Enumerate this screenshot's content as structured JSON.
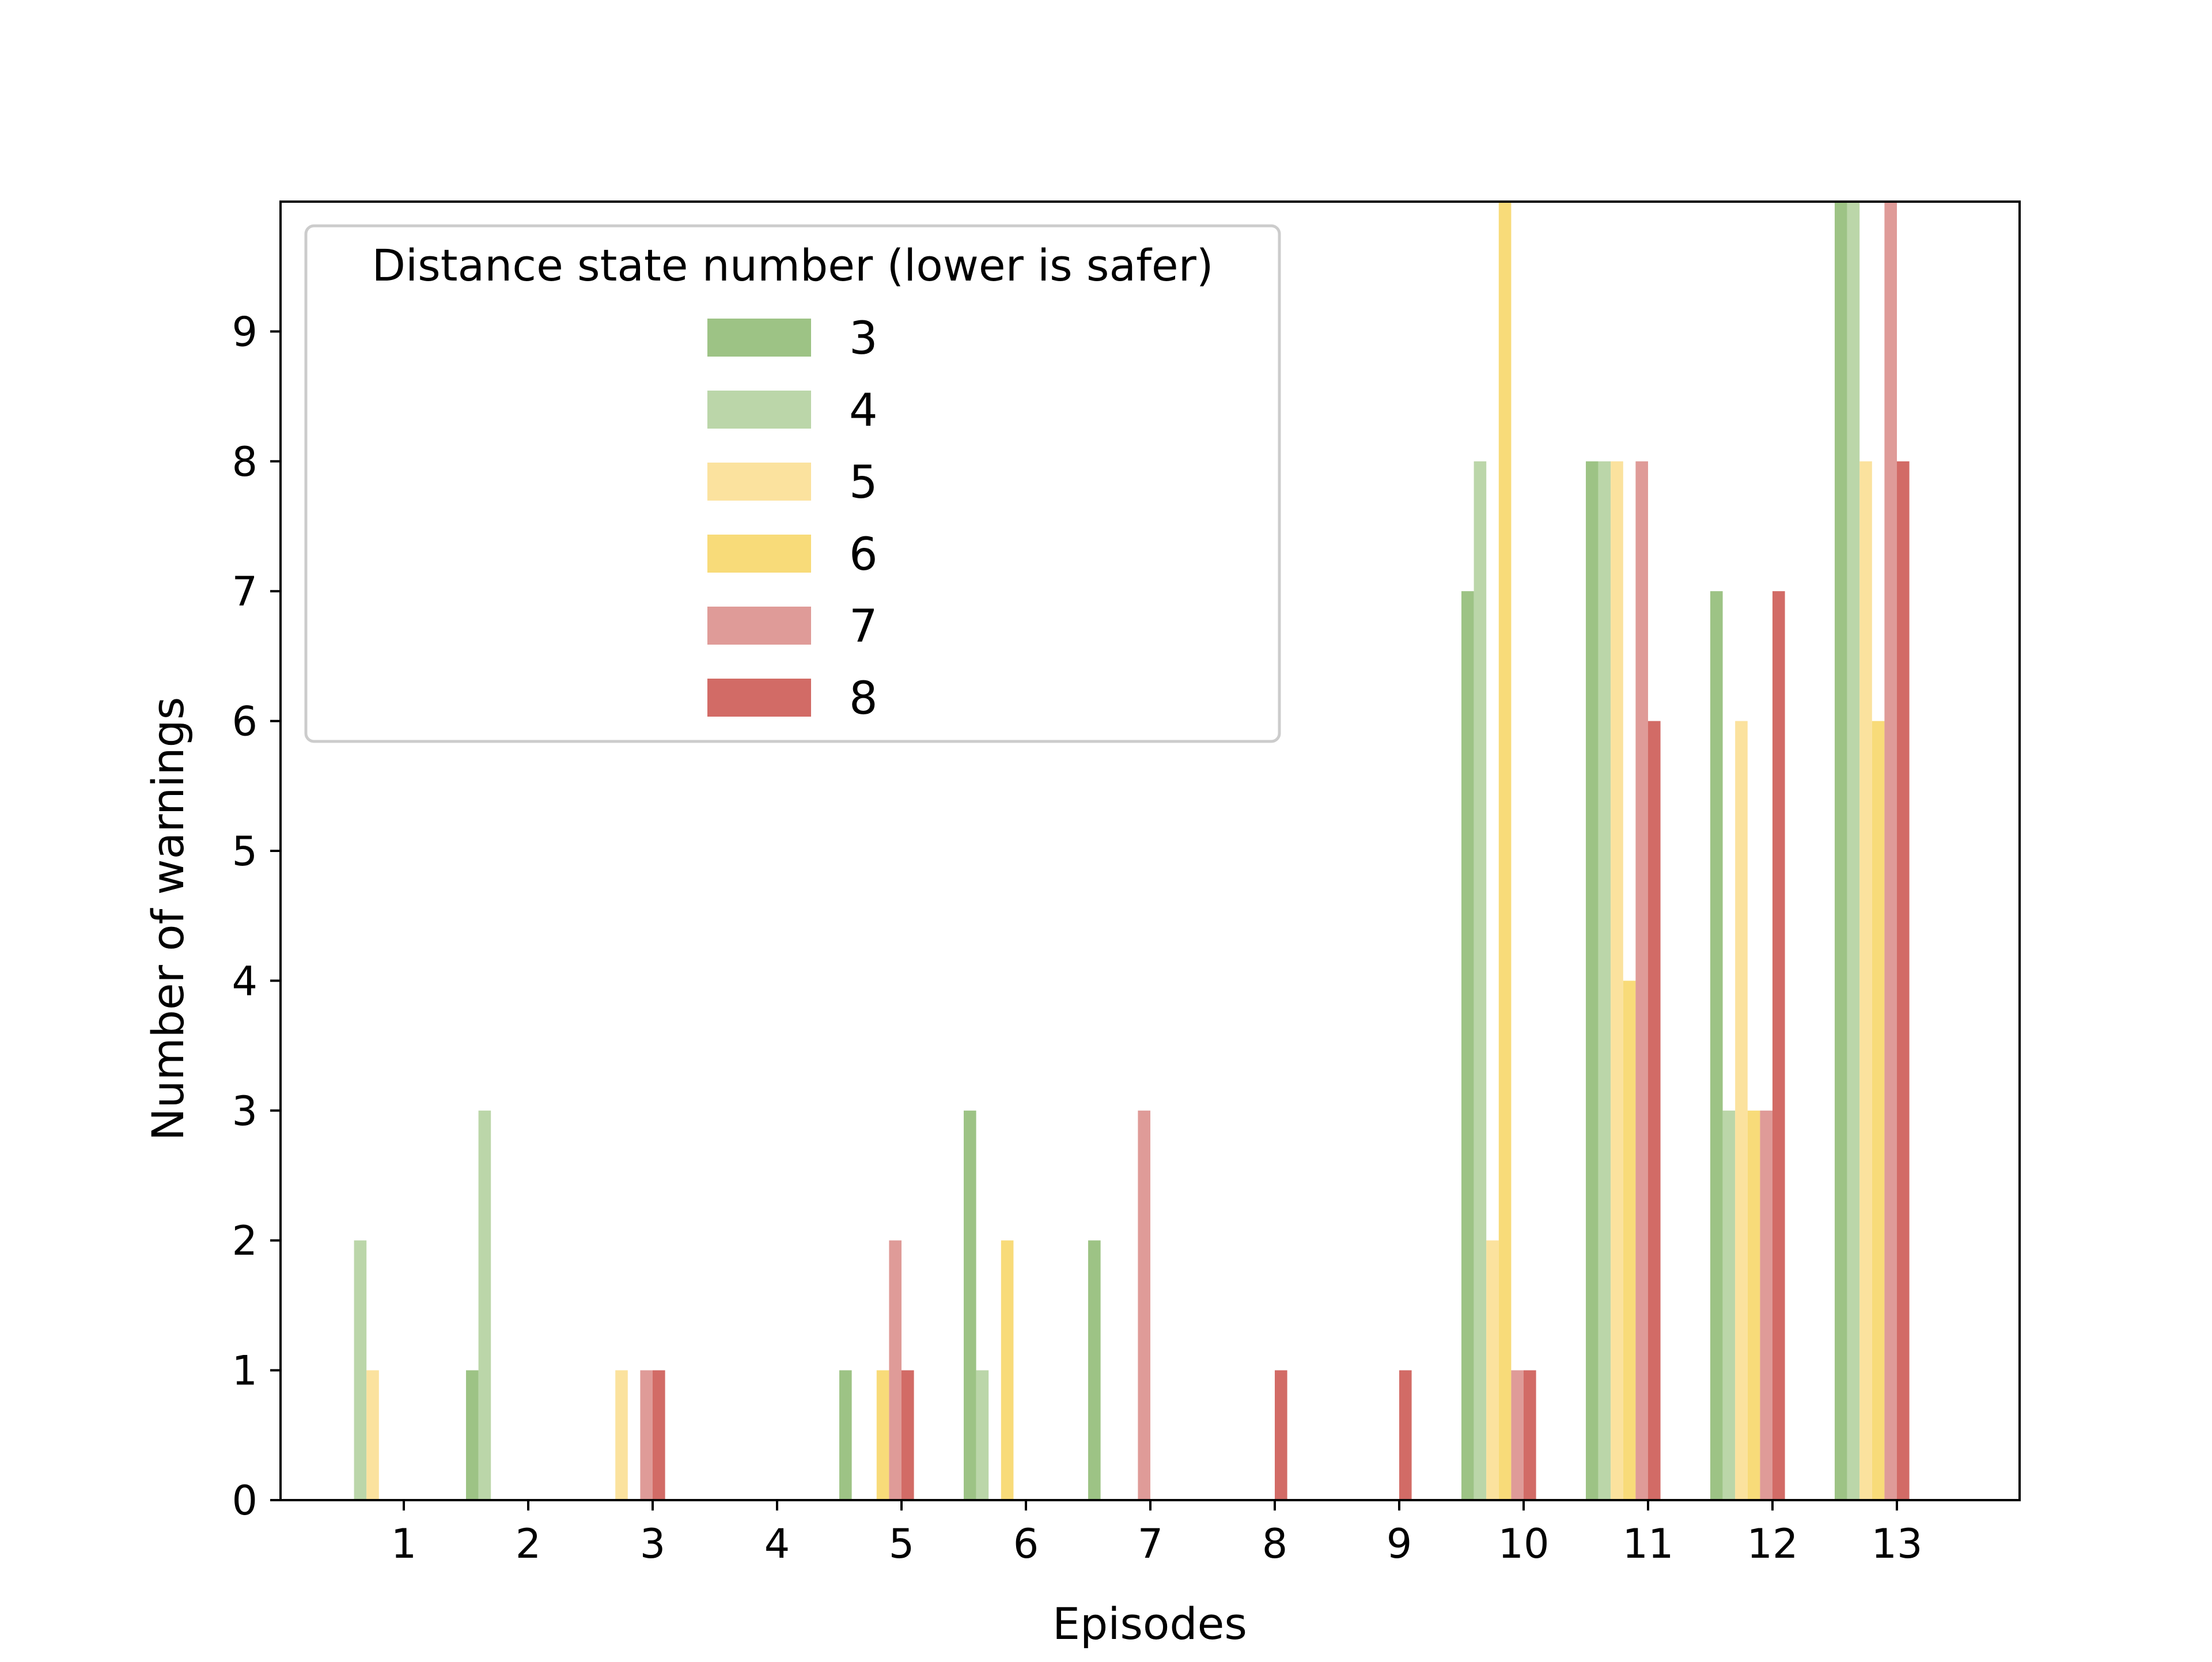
{
  "chart_data": {
    "type": "bar",
    "title": "",
    "xlabel": "Episodes",
    "ylabel": "Number of warnings",
    "categories": [
      "1",
      "2",
      "3",
      "4",
      "5",
      "6",
      "7",
      "8",
      "9",
      "10",
      "11",
      "12",
      "13"
    ],
    "ylim": [
      0,
      10
    ],
    "yticks": [
      "0",
      "1",
      "2",
      "3",
      "4",
      "5",
      "6",
      "7",
      "8",
      "9"
    ],
    "grid": false,
    "legend": {
      "title": "Distance state number (lower is safer)",
      "placement": "top-left"
    },
    "series": [
      {
        "name": "3",
        "color": "#9dc385",
        "values": [
          0,
          1,
          0,
          0,
          1,
          3,
          2,
          0,
          0,
          7,
          8,
          7,
          10
        ]
      },
      {
        "name": "4",
        "color": "#bbd6a9",
        "values": [
          2,
          3,
          0,
          0,
          0,
          1,
          0,
          0,
          0,
          8,
          8,
          3,
          10
        ]
      },
      {
        "name": "5",
        "color": "#fbe29e",
        "values": [
          1,
          0,
          1,
          0,
          0,
          0,
          0,
          0,
          0,
          2,
          8,
          6,
          8
        ]
      },
      {
        "name": "6",
        "color": "#f8db79",
        "values": [
          0,
          0,
          0,
          0,
          1,
          2,
          0,
          0,
          0,
          10,
          4,
          3,
          6
        ]
      },
      {
        "name": "7",
        "color": "#df9b98",
        "values": [
          0,
          0,
          1,
          0,
          2,
          0,
          3,
          0,
          0,
          1,
          8,
          3,
          10
        ]
      },
      {
        "name": "8",
        "color": "#d26b66",
        "values": [
          0,
          0,
          1,
          0,
          1,
          0,
          0,
          1,
          1,
          1,
          6,
          7,
          8
        ]
      }
    ]
  }
}
